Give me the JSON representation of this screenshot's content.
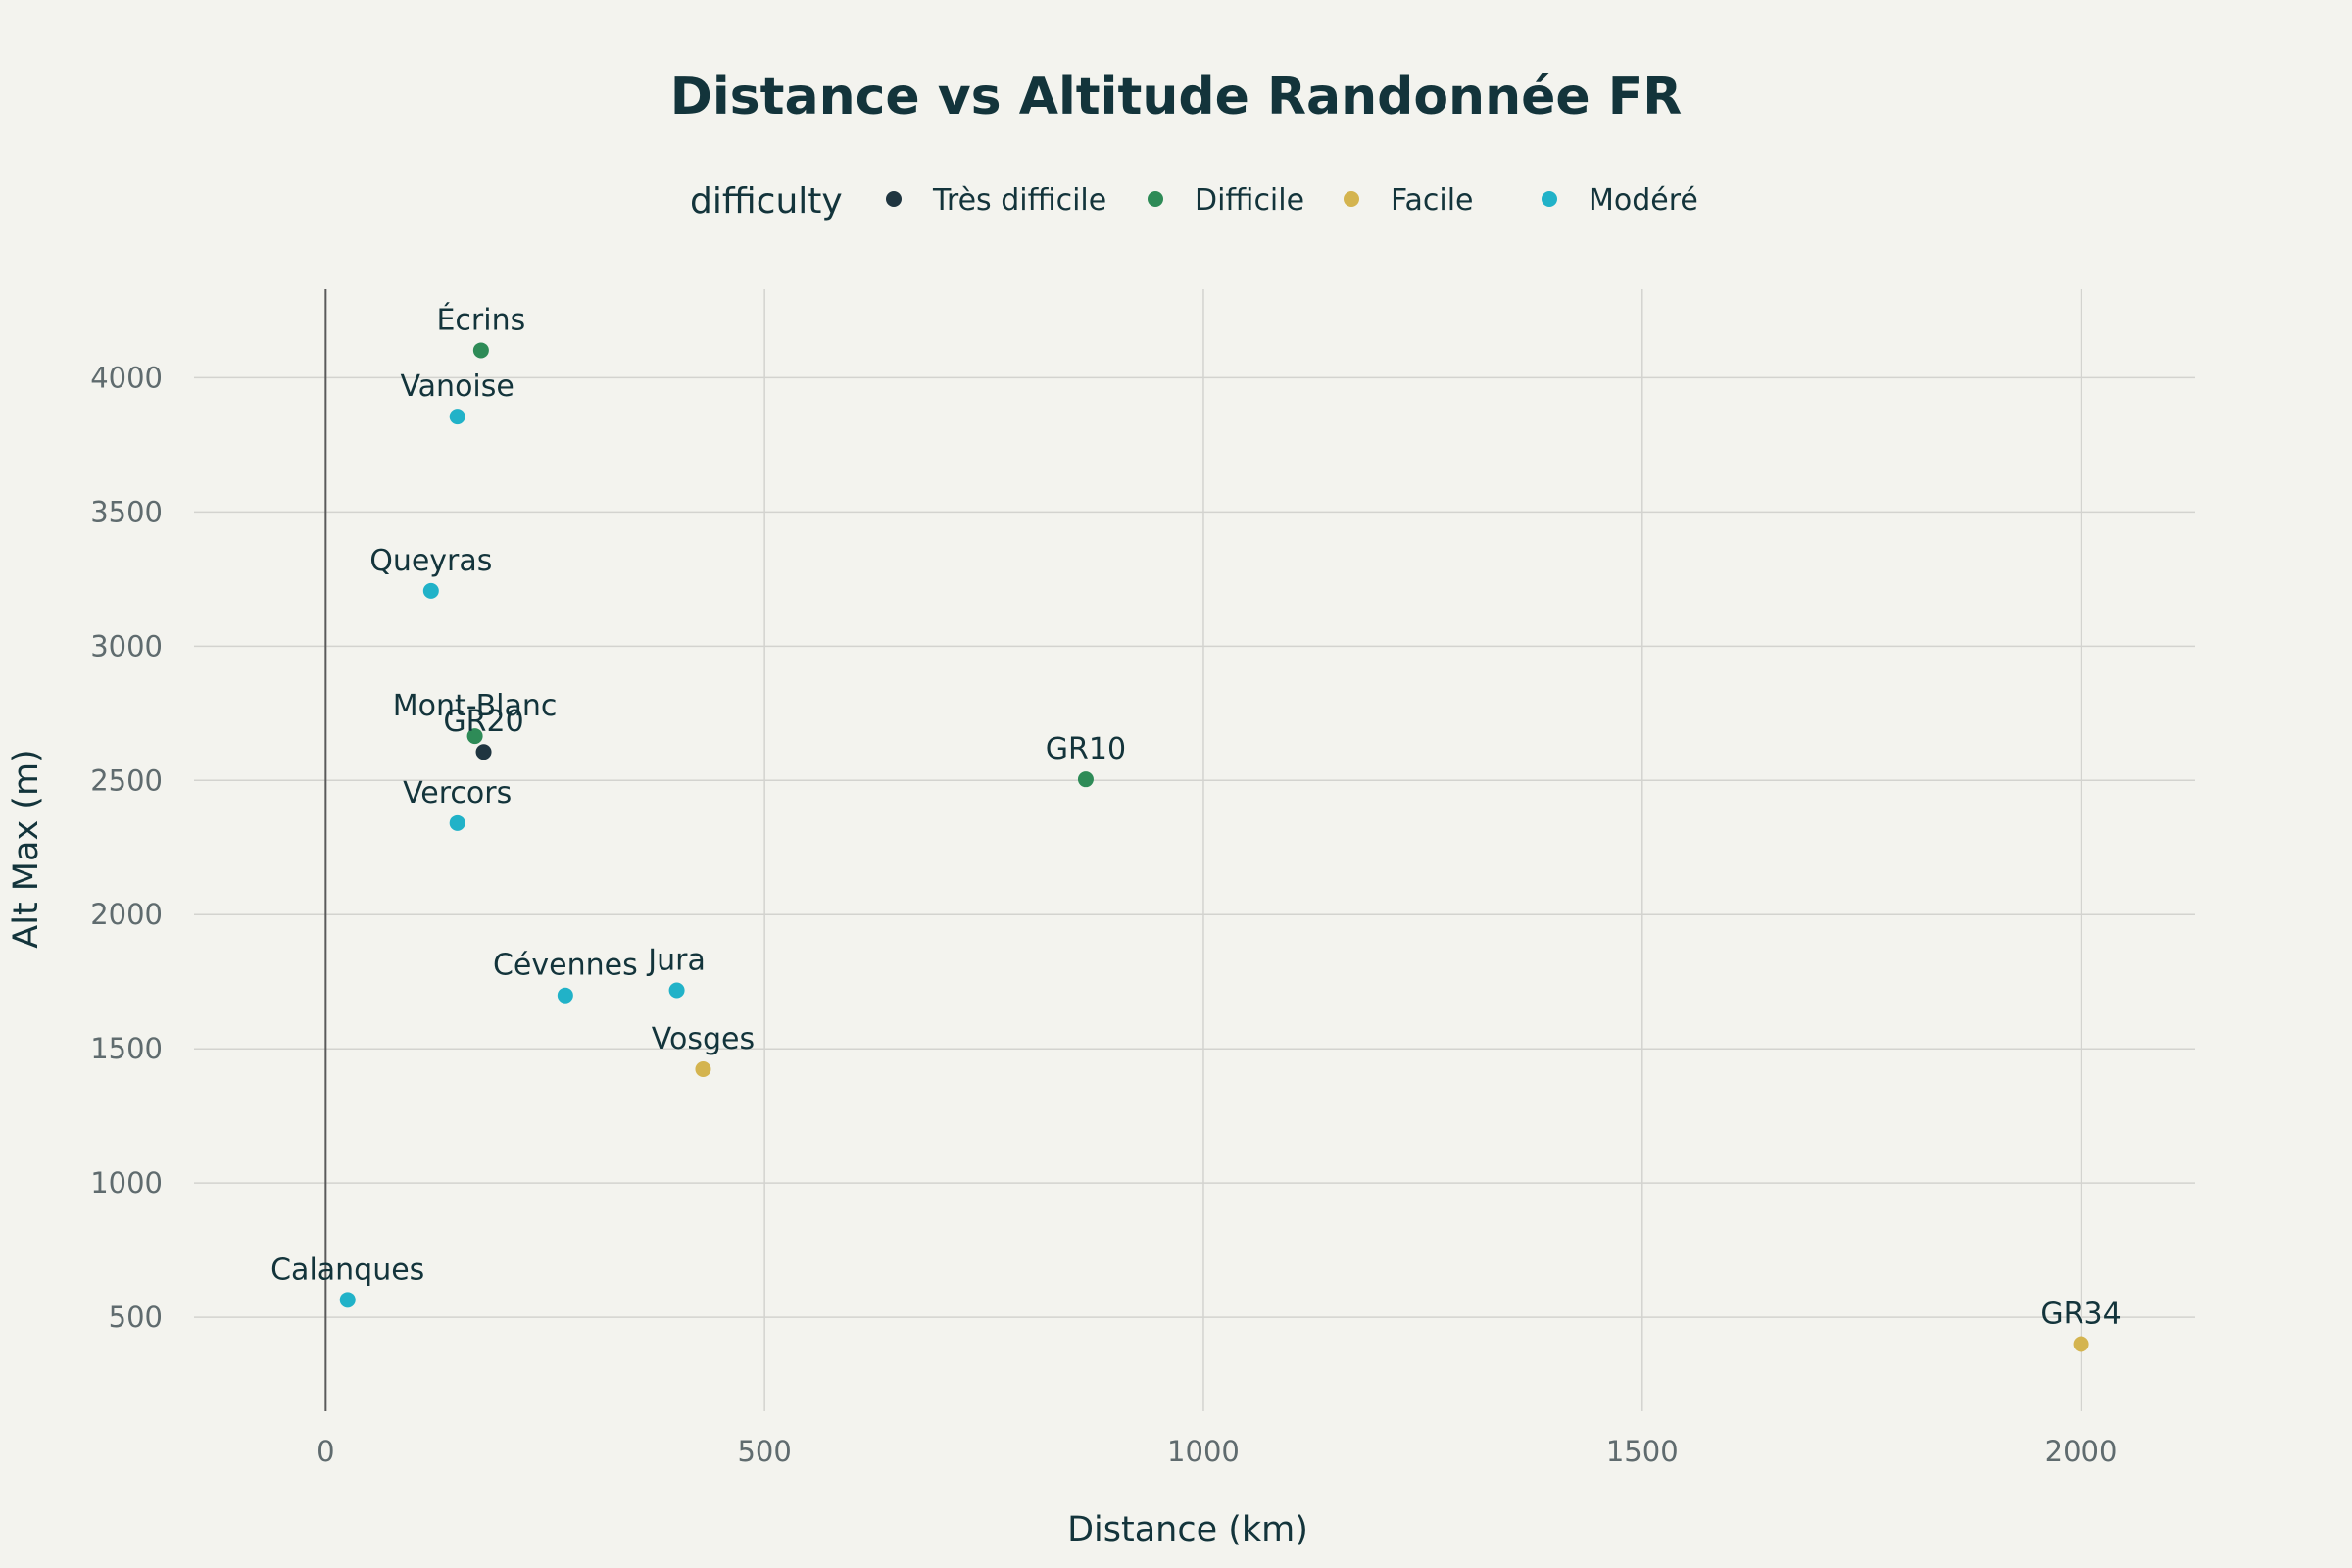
{
  "chart_data": {
    "type": "scatter",
    "title": "Distance vs Altitude Randonnée FR",
    "xlabel": "Distance (km)",
    "ylabel": "Alt Max (m)",
    "xlim": [
      -150,
      2130
    ],
    "ylim": [
      150,
      4330
    ],
    "xticks": [
      0,
      500,
      1000,
      1500,
      2000
    ],
    "yticks": [
      500,
      1000,
      1500,
      2000,
      2500,
      3000,
      3500,
      4000
    ],
    "grid": true,
    "legend": {
      "title": "difficulty",
      "placement": "top-center",
      "entries": [
        {
          "name": "Très difficile",
          "color": "#1f3540"
        },
        {
          "name": "Difficile",
          "color": "#2e8b57"
        },
        {
          "name": "Facile",
          "color": "#d4b44f"
        },
        {
          "name": "Modéré",
          "color": "#21b2c8"
        }
      ]
    },
    "points": [
      {
        "label": "Écrins",
        "x": 177,
        "y": 4102,
        "difficulty": "Difficile"
      },
      {
        "label": "Vanoise",
        "x": 150,
        "y": 3855,
        "difficulty": "Modéré"
      },
      {
        "label": "Queyras",
        "x": 120,
        "y": 3206,
        "difficulty": "Modéré"
      },
      {
        "label": "Mont-Blanc",
        "x": 170,
        "y": 2665,
        "difficulty": "Difficile"
      },
      {
        "label": "GR20",
        "x": 180,
        "y": 2606,
        "difficulty": "Très difficile"
      },
      {
        "label": "GR10",
        "x": 866,
        "y": 2504,
        "difficulty": "Difficile"
      },
      {
        "label": "Vercors",
        "x": 150,
        "y": 2341,
        "difficulty": "Modéré"
      },
      {
        "label": "Cévennes",
        "x": 273,
        "y": 1699,
        "difficulty": "Modéré"
      },
      {
        "label": "Jura",
        "x": 400,
        "y": 1718,
        "difficulty": "Modéré"
      },
      {
        "label": "Vosges",
        "x": 430,
        "y": 1424,
        "difficulty": "Facile"
      },
      {
        "label": "Calanques",
        "x": 25,
        "y": 565,
        "difficulty": "Modéré"
      },
      {
        "label": "GR34",
        "x": 2000,
        "y": 400,
        "difficulty": "Facile"
      }
    ]
  }
}
